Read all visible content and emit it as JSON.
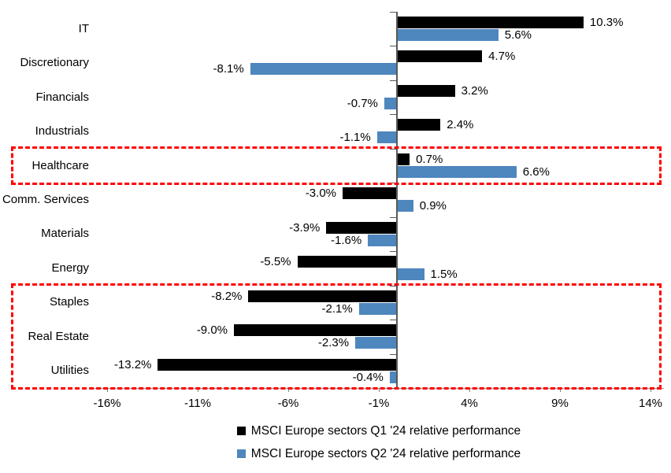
{
  "chart_data": {
    "type": "bar",
    "orientation": "horizontal",
    "title": "",
    "categories": [
      "IT",
      "Discretionary",
      "Financials",
      "Industrials",
      "Healthcare",
      "Comm. Services",
      "Materials",
      "Energy",
      "Staples",
      "Real Estate",
      "Utilities"
    ],
    "series": [
      {
        "name": "MSCI Europe sectors Q1 '24 relative performance",
        "color": "#000000",
        "values": [
          10.3,
          4.7,
          3.2,
          2.4,
          0.7,
          -3.0,
          -3.9,
          -5.5,
          -8.2,
          -9.0,
          -13.2
        ],
        "labels": [
          "10.3%",
          "4.7%",
          "3.2%",
          "2.4%",
          "0.7%",
          "-3.0%",
          "-3.9%",
          "-5.5%",
          "-8.2%",
          "-9.0%",
          "-13.2%"
        ]
      },
      {
        "name": "MSCI Europe sectors Q2 '24 relative performance",
        "color": "#4E86BE",
        "values": [
          5.6,
          -8.1,
          -0.7,
          -1.1,
          6.6,
          0.9,
          -1.6,
          1.5,
          -2.1,
          -2.3,
          -0.4
        ],
        "labels": [
          "5.6%",
          "-8.1%",
          "-0.7%",
          "-1.1%",
          "6.6%",
          "0.9%",
          "-1.6%",
          "1.5%",
          "-2.1%",
          "-2.3%",
          "-0.4%"
        ]
      }
    ],
    "x_axis": {
      "ticks": [
        -16,
        -11,
        -6,
        -1,
        4,
        9,
        14
      ],
      "tick_labels": [
        "-16%",
        "-11%",
        "-6%",
        "-1%",
        "4%",
        "9%",
        "14%"
      ],
      "unit": "%"
    },
    "xlim": [
      -16.7,
      14.7
    ],
    "grid": false,
    "legend_position": "bottom",
    "highlight_color": "#FF0000",
    "highlights": [
      {
        "from": "Healthcare",
        "to": "Healthcare"
      },
      {
        "from": "Staples",
        "to": "Utilities"
      }
    ]
  }
}
